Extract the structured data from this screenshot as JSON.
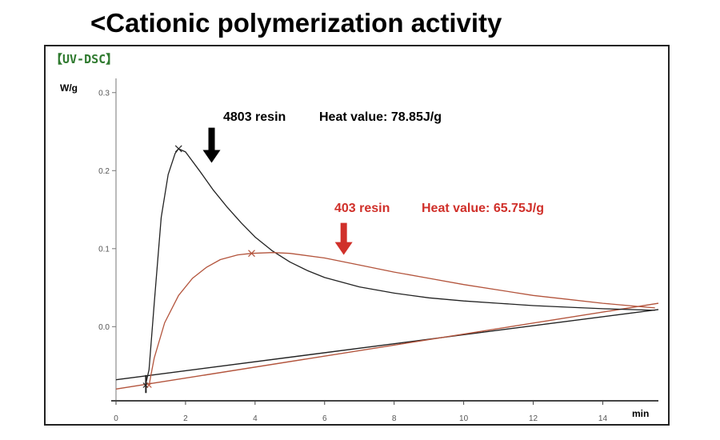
{
  "header": {
    "title": "<Cationic polymerization activity"
  },
  "chart_data": {
    "type": "line",
    "panel_label": "【UV-DSC】",
    "xlabel": "min",
    "ylabel": "W/g",
    "xlim": [
      0,
      15.6
    ],
    "ylim": [
      -0.095,
      0.31
    ],
    "x_ticks": [
      0,
      2,
      4,
      6,
      8,
      10,
      12,
      14
    ],
    "y_ticks": [
      0.0,
      0.1,
      0.2,
      0.3
    ],
    "y_tick_labels": [
      "0.0",
      "0.1",
      "0.2",
      "0.3"
    ],
    "grid": false,
    "series": [
      {
        "name": "4803 resin",
        "color": "#222222",
        "peak": [
          1.8,
          0.228
        ],
        "x": [
          0.85,
          0.95,
          1.1,
          1.3,
          1.5,
          1.7,
          1.8,
          2.0,
          2.4,
          2.8,
          3.2,
          3.6,
          4.0,
          4.5,
          5.0,
          5.5,
          6.0,
          7.0,
          8.0,
          9.0,
          10.0,
          11.0,
          12.0,
          13.0,
          14.0,
          15.5
        ],
        "y": [
          -0.075,
          -0.055,
          0.03,
          0.14,
          0.195,
          0.222,
          0.228,
          0.224,
          0.2,
          0.175,
          0.153,
          0.133,
          0.115,
          0.097,
          0.083,
          0.072,
          0.063,
          0.051,
          0.043,
          0.037,
          0.033,
          0.03,
          0.027,
          0.025,
          0.023,
          0.021
        ]
      },
      {
        "name": "403 resin",
        "color": "#b3543c",
        "peak": [
          3.9,
          0.094
        ],
        "x": [
          0.95,
          1.1,
          1.4,
          1.8,
          2.2,
          2.6,
          3.0,
          3.5,
          3.9,
          4.5,
          5.0,
          6.0,
          7.0,
          8.0,
          9.0,
          10.0,
          11.0,
          12.0,
          13.0,
          14.0,
          15.0,
          15.5
        ],
        "y": [
          -0.075,
          -0.04,
          0.005,
          0.04,
          0.062,
          0.076,
          0.086,
          0.092,
          0.094,
          0.095,
          0.094,
          0.088,
          0.079,
          0.07,
          0.062,
          0.054,
          0.047,
          0.04,
          0.035,
          0.03,
          0.026,
          0.024
        ]
      }
    ],
    "baselines": [
      {
        "series": "4803 resin",
        "color": "#222222",
        "from": [
          0,
          -0.068
        ],
        "to": [
          15.6,
          0.022
        ]
      },
      {
        "series": "403 resin",
        "color": "#b3543c",
        "from": [
          0,
          -0.08
        ],
        "to": [
          15.6,
          0.03
        ]
      }
    ],
    "annotations": [
      {
        "series": "4803 resin",
        "resin_label": "4803 resin",
        "heat_label": "Heat value: 78.85J/g",
        "color": "#000000",
        "arrow_color": "#000000",
        "arrow_x": 2.75,
        "arrow_y_top": 0.255,
        "arrow_y_tip": 0.21
      },
      {
        "series": "403 resin",
        "resin_label": "403 resin",
        "heat_label": "Heat value: 65.75J/g",
        "color": "#d0302a",
        "arrow_color": "#d0302a",
        "arrow_x": 6.55,
        "arrow_y_top": 0.133,
        "arrow_y_tip": 0.092
      }
    ]
  }
}
